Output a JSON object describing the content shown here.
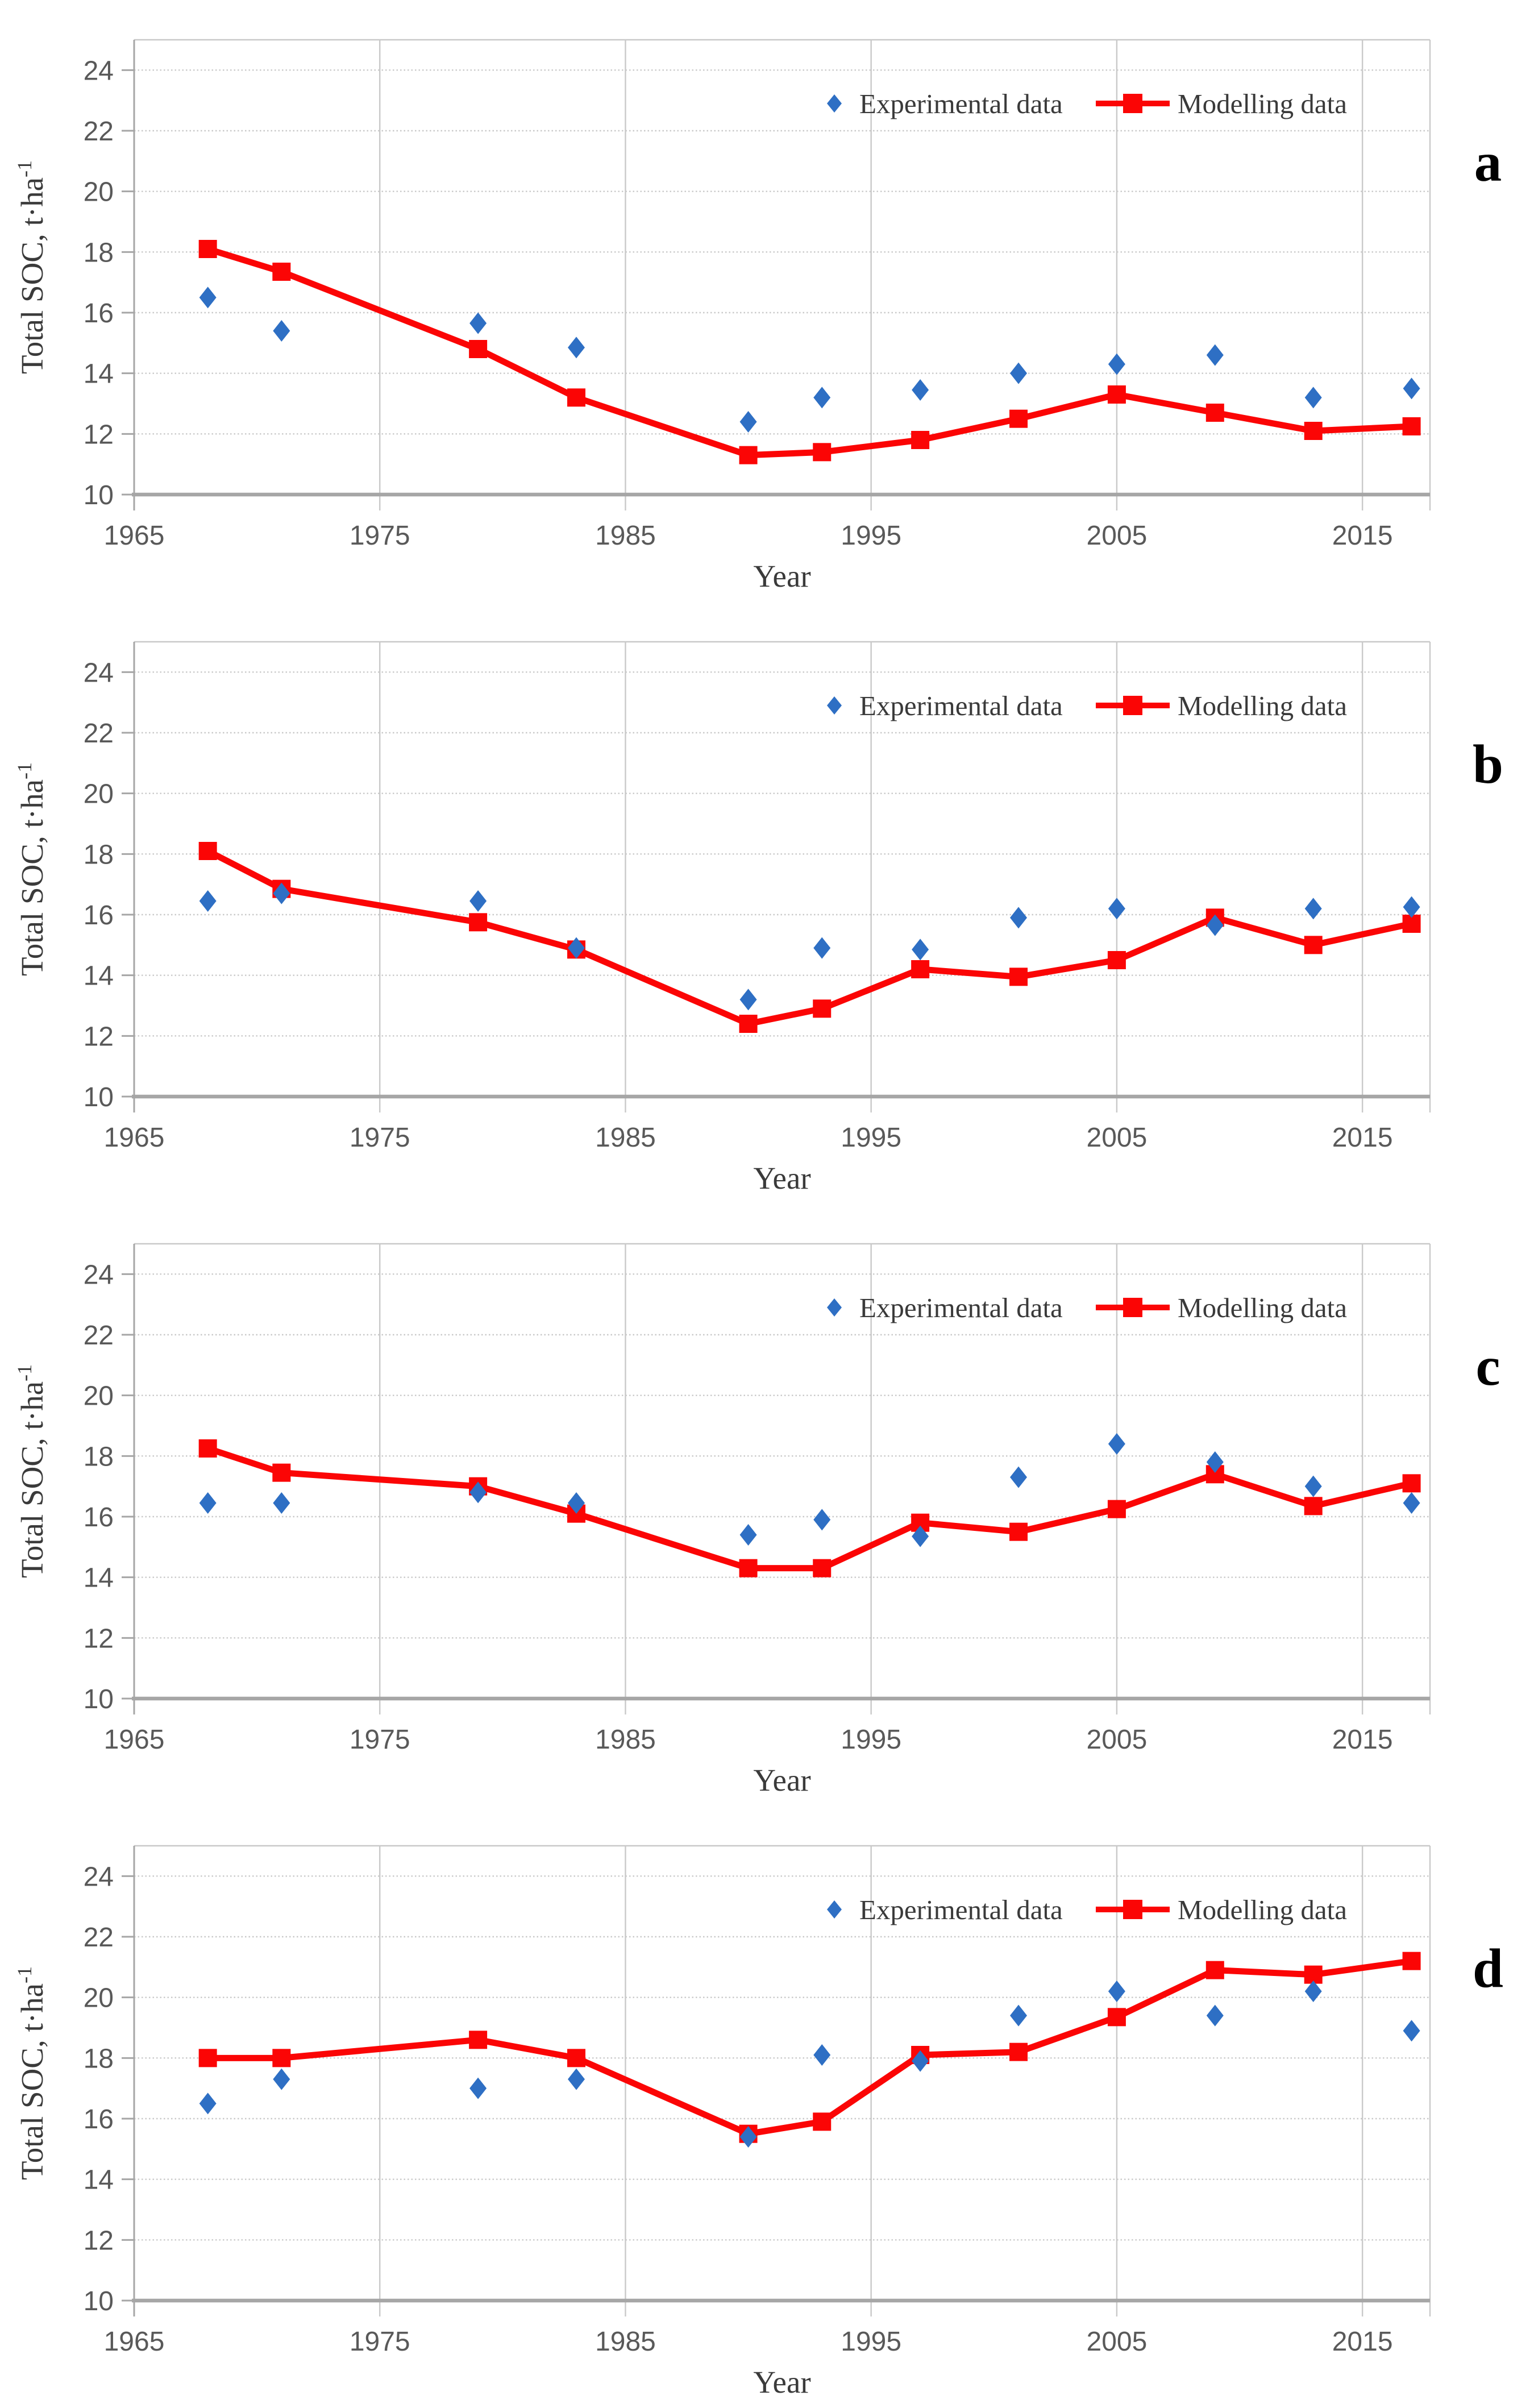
{
  "figure": {
    "ylabel": {
      "text": "Total SOC, t·ha",
      "superscript": "-1"
    },
    "xlabel": "Year",
    "legend": {
      "experimental_label": "Experimental data",
      "modelling_label": "Modelling data"
    },
    "colors": {
      "experimental": "#2E6FC4",
      "modelling": "#FB0505",
      "grid": "#C9C9C9",
      "axis": "#A6A6A6",
      "tick_text": "#595959",
      "label_text": "#3A3A3A",
      "panel_letter": "#000000",
      "background": "#FFFFFF"
    },
    "panel_letters": [
      "a",
      "b",
      "c",
      "d"
    ]
  },
  "chart_data": [
    {
      "panel_label": "a",
      "type": "line",
      "title": "",
      "xlabel": "Year",
      "ylabel": "Total SOC, t·ha⁻¹",
      "xlim": [
        1965,
        2017.75
      ],
      "ylim": [
        10,
        25
      ],
      "xticks": [
        1965,
        1975,
        1985,
        1995,
        2005,
        2015
      ],
      "yticks": [
        10,
        12,
        14,
        16,
        18,
        20,
        22,
        24
      ],
      "grid": true,
      "legend_position": "inside-top-right",
      "x": [
        1968,
        1971,
        1979,
        1983,
        1990,
        1993,
        1997,
        2001,
        2005,
        2009,
        2013,
        2017
      ],
      "series": [
        {
          "name": "Experimental data",
          "style": "scatter-diamond",
          "values": [
            16.5,
            15.4,
            15.65,
            14.85,
            12.4,
            13.2,
            13.45,
            14.0,
            14.3,
            14.6,
            13.2,
            13.5
          ]
        },
        {
          "name": "Modelling data",
          "style": "line-square",
          "values": [
            18.1,
            17.35,
            14.8,
            13.2,
            11.3,
            11.4,
            11.8,
            12.5,
            13.3,
            12.7,
            12.1,
            12.25
          ]
        }
      ]
    },
    {
      "panel_label": "b",
      "type": "line",
      "title": "",
      "xlabel": "Year",
      "ylabel": "Total SOC, t·ha⁻¹",
      "xlim": [
        1965,
        2017.75
      ],
      "ylim": [
        10,
        25
      ],
      "xticks": [
        1965,
        1975,
        1985,
        1995,
        2005,
        2015
      ],
      "yticks": [
        10,
        12,
        14,
        16,
        18,
        20,
        22,
        24
      ],
      "grid": true,
      "legend_position": "inside-top-right",
      "x": [
        1968,
        1971,
        1979,
        1983,
        1990,
        1993,
        1997,
        2001,
        2005,
        2009,
        2013,
        2017
      ],
      "series": [
        {
          "name": "Experimental data",
          "style": "scatter-diamond",
          "values": [
            16.45,
            16.7,
            16.45,
            14.9,
            13.2,
            14.9,
            14.85,
            15.9,
            16.2,
            15.65,
            16.2,
            16.25
          ]
        },
        {
          "name": "Modelling data",
          "style": "line-square",
          "values": [
            18.1,
            16.85,
            15.75,
            14.85,
            12.4,
            12.9,
            14.2,
            13.95,
            14.5,
            15.9,
            15.0,
            15.7
          ]
        }
      ]
    },
    {
      "panel_label": "c",
      "type": "line",
      "title": "",
      "xlabel": "Year",
      "ylabel": "Total SOC, t·ha⁻¹",
      "xlim": [
        1965,
        2017.75
      ],
      "ylim": [
        10,
        25
      ],
      "xticks": [
        1965,
        1975,
        1985,
        1995,
        2005,
        2015
      ],
      "yticks": [
        10,
        12,
        14,
        16,
        18,
        20,
        22,
        24
      ],
      "grid": true,
      "legend_position": "inside-top-right",
      "x": [
        1968,
        1971,
        1979,
        1983,
        1990,
        1993,
        1997,
        2001,
        2005,
        2009,
        2013,
        2017
      ],
      "series": [
        {
          "name": "Experimental data",
          "style": "scatter-diamond",
          "values": [
            16.45,
            16.45,
            16.8,
            16.45,
            15.4,
            15.9,
            15.35,
            17.3,
            18.4,
            17.8,
            17.0,
            16.45
          ]
        },
        {
          "name": "Modelling data",
          "style": "line-square",
          "values": [
            18.25,
            17.45,
            17.0,
            16.1,
            14.3,
            14.3,
            15.8,
            15.5,
            16.25,
            17.4,
            16.35,
            17.1
          ]
        }
      ]
    },
    {
      "panel_label": "d",
      "type": "line",
      "title": "",
      "xlabel": "Year",
      "ylabel": "Total SOC, t·ha⁻¹",
      "xlim": [
        1965,
        2017.75
      ],
      "ylim": [
        10,
        25
      ],
      "xticks": [
        1965,
        1975,
        1985,
        1995,
        2005,
        2015
      ],
      "yticks": [
        10,
        12,
        14,
        16,
        18,
        20,
        22,
        24
      ],
      "grid": true,
      "legend_position": "inside-top-right",
      "x": [
        1968,
        1971,
        1979,
        1983,
        1990,
        1993,
        1997,
        2001,
        2005,
        2009,
        2013,
        2017
      ],
      "series": [
        {
          "name": "Experimental data",
          "style": "scatter-diamond",
          "values": [
            16.5,
            17.3,
            17.0,
            17.3,
            15.4,
            18.1,
            17.9,
            19.4,
            20.2,
            19.4,
            20.2,
            18.9
          ]
        },
        {
          "name": "Modelling data",
          "style": "line-square",
          "values": [
            18.0,
            18.0,
            18.6,
            18.0,
            15.5,
            15.9,
            18.1,
            18.2,
            19.35,
            20.9,
            20.75,
            21.2
          ]
        }
      ]
    }
  ]
}
